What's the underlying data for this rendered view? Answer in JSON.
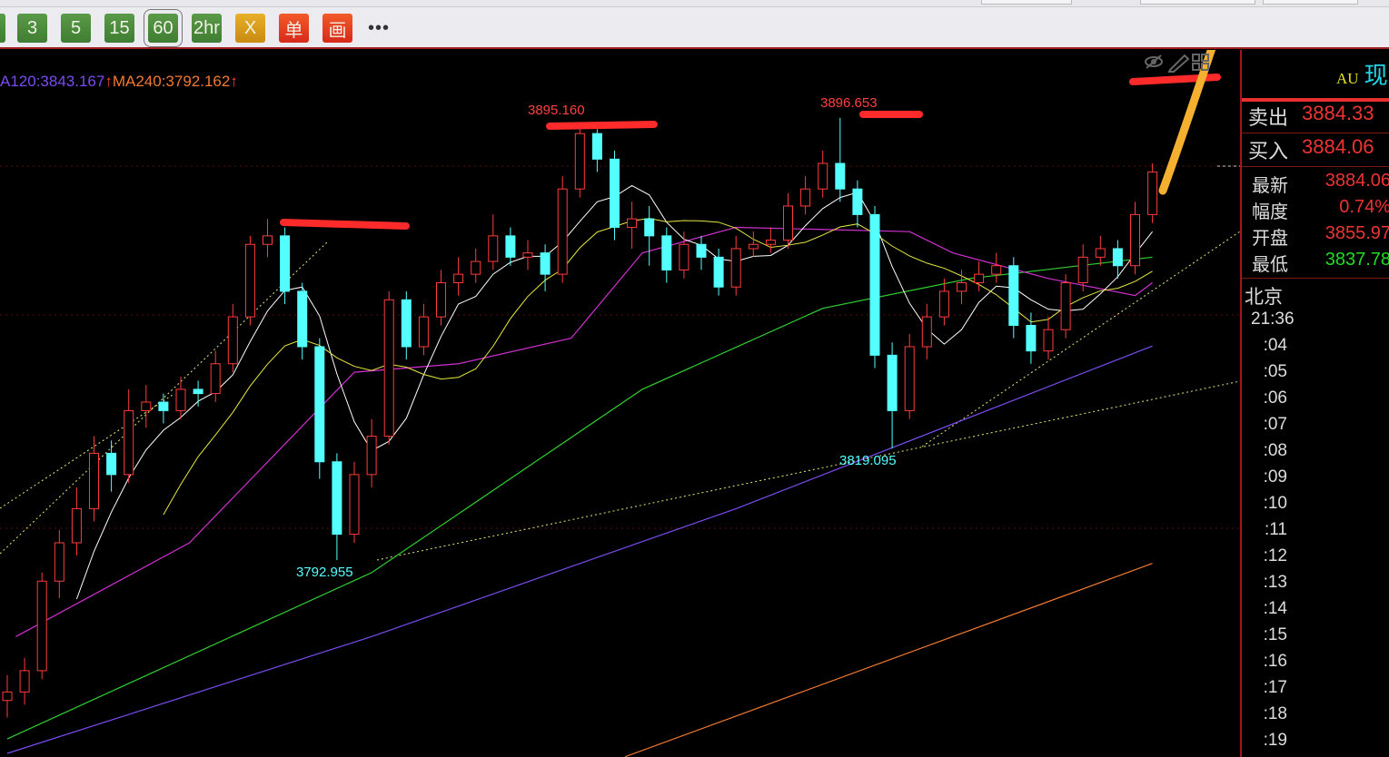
{
  "toolbar": {
    "buttons": [
      {
        "label": "3",
        "color": "green"
      },
      {
        "label": "5",
        "color": "green"
      },
      {
        "label": "15",
        "color": "green"
      },
      {
        "label": "60",
        "color": "green",
        "selected": true
      },
      {
        "label": "2hr",
        "color": "green"
      },
      {
        "label": "X",
        "color": "orange"
      },
      {
        "label": "单",
        "color": "red"
      },
      {
        "label": "画",
        "color": "red"
      }
    ],
    "more": "•••"
  },
  "legend": {
    "ma120": "A120:3843.167",
    "ma120_arrow": "↑",
    "ma240": "MA240:3792.162",
    "ma240_arrow": "↑",
    "ma120_color": "#7a4cf0",
    "ma240_color": "#f07a30"
  },
  "chart_icons": [
    "eye-off-icon",
    "pencil-icon",
    "grid-icon"
  ],
  "panel": {
    "symbol": "AU",
    "name": "现",
    "sell": {
      "label": "卖出",
      "value": "3884.33"
    },
    "buy": {
      "label": "买入",
      "value": "3884.06"
    },
    "stats": [
      {
        "label": "最新",
        "value": "3884.06",
        "color": "#ee3333"
      },
      {
        "label": "幅度",
        "value": "0.74%",
        "color": "#ee3333"
      },
      {
        "label": "开盘",
        "value": "3855.97",
        "color": "#ee3333"
      },
      {
        "label": "最低",
        "value": "3837.78",
        "color": "#22dd22"
      }
    ],
    "city": "北京",
    "times": [
      "21:36",
      ":04",
      ":05",
      ":06",
      ":07",
      ":08",
      ":09",
      ":10",
      ":11",
      ":12",
      ":13",
      ":14",
      ":15",
      ":16",
      ":17",
      ":18",
      ":19"
    ]
  },
  "chart_data": {
    "type": "candlestick",
    "interval": "60",
    "up_color": "#ff3b3b",
    "down_color": "#54ffff",
    "annotations": [
      {
        "text": "3895.160",
        "value": 3895.16,
        "index": 33,
        "kind": "high"
      },
      {
        "text": "3896.653",
        "value": 3896.653,
        "index": 48,
        "kind": "high"
      },
      {
        "text": "3792.955",
        "value": 3792.955,
        "index": 19,
        "kind": "low"
      },
      {
        "text": "3819.095",
        "value": 3819.095,
        "index": 51,
        "kind": "low"
      }
    ],
    "candles": [
      [
        3760,
        3766,
        3756,
        3762
      ],
      [
        3762,
        3770,
        3759,
        3767
      ],
      [
        3767,
        3790,
        3765,
        3788
      ],
      [
        3788,
        3800,
        3784,
        3797
      ],
      [
        3797,
        3810,
        3794,
        3805
      ],
      [
        3805,
        3822,
        3802,
        3818
      ],
      [
        3818,
        3821,
        3809,
        3813
      ],
      [
        3813,
        3833,
        3811,
        3828
      ],
      [
        3828,
        3834,
        3824,
        3830
      ],
      [
        3830,
        3832,
        3825,
        3828
      ],
      [
        3828,
        3836,
        3826,
        3833
      ],
      [
        3833,
        3835,
        3829,
        3832
      ],
      [
        3832,
        3842,
        3830,
        3839
      ],
      [
        3839,
        3853,
        3837,
        3850
      ],
      [
        3850,
        3869,
        3848,
        3867
      ],
      [
        3867,
        3873,
        3864,
        3869
      ],
      [
        3869,
        3871,
        3853,
        3856
      ],
      [
        3856,
        3858,
        3840,
        3843
      ],
      [
        3843,
        3845,
        3812,
        3816
      ],
      [
        3816,
        3818,
        3792.955,
        3799
      ],
      [
        3799,
        3816,
        3797,
        3813
      ],
      [
        3813,
        3826,
        3810,
        3822
      ],
      [
        3822,
        3856,
        3820,
        3854
      ],
      [
        3854,
        3856,
        3840,
        3843
      ],
      [
        3843,
        3853,
        3841,
        3850
      ],
      [
        3850,
        3861,
        3848,
        3858
      ],
      [
        3858,
        3864,
        3855,
        3860
      ],
      [
        3860,
        3866,
        3858,
        3863
      ],
      [
        3863,
        3874,
        3861,
        3869
      ],
      [
        3869,
        3871,
        3862,
        3864
      ],
      [
        3864,
        3868,
        3861,
        3865
      ],
      [
        3865,
        3867,
        3856,
        3860
      ],
      [
        3860,
        3883,
        3858,
        3880
      ],
      [
        3880,
        3895.16,
        3878,
        3893
      ],
      [
        3893,
        3894,
        3884,
        3887
      ],
      [
        3887,
        3889,
        3868,
        3871
      ],
      [
        3871,
        3877,
        3866,
        3873
      ],
      [
        3873,
        3876,
        3862,
        3869
      ],
      [
        3869,
        3871,
        3858,
        3861
      ],
      [
        3861,
        3870,
        3859,
        3867
      ],
      [
        3867,
        3869,
        3861,
        3864
      ],
      [
        3864,
        3866,
        3855,
        3857
      ],
      [
        3857,
        3869,
        3855,
        3866
      ],
      [
        3866,
        3870,
        3864,
        3867
      ],
      [
        3867,
        3871,
        3865,
        3868
      ],
      [
        3868,
        3879,
        3866,
        3876
      ],
      [
        3876,
        3883,
        3874,
        3880
      ],
      [
        3880,
        3889,
        3878,
        3886
      ],
      [
        3886,
        3896.653,
        3877,
        3880
      ],
      [
        3880,
        3882,
        3871,
        3874
      ],
      [
        3874,
        3876,
        3838,
        3841
      ],
      [
        3841,
        3844,
        3819.095,
        3828
      ],
      [
        3828,
        3846,
        3826,
        3843
      ],
      [
        3843,
        3853,
        3840,
        3850
      ],
      [
        3850,
        3859,
        3848,
        3856
      ],
      [
        3856,
        3861,
        3853,
        3858
      ],
      [
        3858,
        3863,
        3856,
        3860
      ],
      [
        3860,
        3865,
        3858,
        3862
      ],
      [
        3862,
        3864,
        3845,
        3848
      ],
      [
        3848,
        3851,
        3839,
        3842
      ],
      [
        3842,
        3850,
        3840,
        3847
      ],
      [
        3847,
        3860,
        3845,
        3858
      ],
      [
        3858,
        3867,
        3856,
        3864
      ],
      [
        3864,
        3869,
        3862,
        3866
      ],
      [
        3866,
        3868,
        3859,
        3862
      ],
      [
        3862,
        3877,
        3860,
        3874
      ],
      [
        3874,
        3886,
        3872,
        3884
      ]
    ],
    "ma_lines": [
      {
        "name": "MA120",
        "color": "#7a4cf0",
        "points": [
          [
            0,
            3747.6
          ],
          [
            21,
            3775
          ],
          [
            42,
            3805
          ],
          [
            66,
            3843.167
          ]
        ]
      },
      {
        "name": "MA240",
        "color": "#f07a30",
        "points": [
          [
            35.6,
            3746.8
          ],
          [
            66,
            3792.162
          ]
        ]
      },
      {
        "color": "#30d030",
        "points": [
          [
            0,
            3751
          ],
          [
            21,
            3790
          ],
          [
            36.6,
            3833
          ],
          [
            47,
            3852
          ],
          [
            55.5,
            3859
          ],
          [
            66,
            3864
          ]
        ]
      },
      {
        "color": "#d030d0",
        "points": [
          [
            0.5,
            3775
          ],
          [
            10.5,
            3797
          ],
          [
            20,
            3837
          ],
          [
            26,
            3839
          ],
          [
            32.5,
            3845
          ],
          [
            36.6,
            3865
          ],
          [
            42,
            3871
          ],
          [
            52,
            3870
          ],
          [
            54.5,
            3865
          ],
          [
            60,
            3859
          ],
          [
            65,
            3855
          ],
          [
            66,
            3858
          ]
        ]
      }
    ],
    "ylim": [
      3745,
      3900
    ]
  }
}
